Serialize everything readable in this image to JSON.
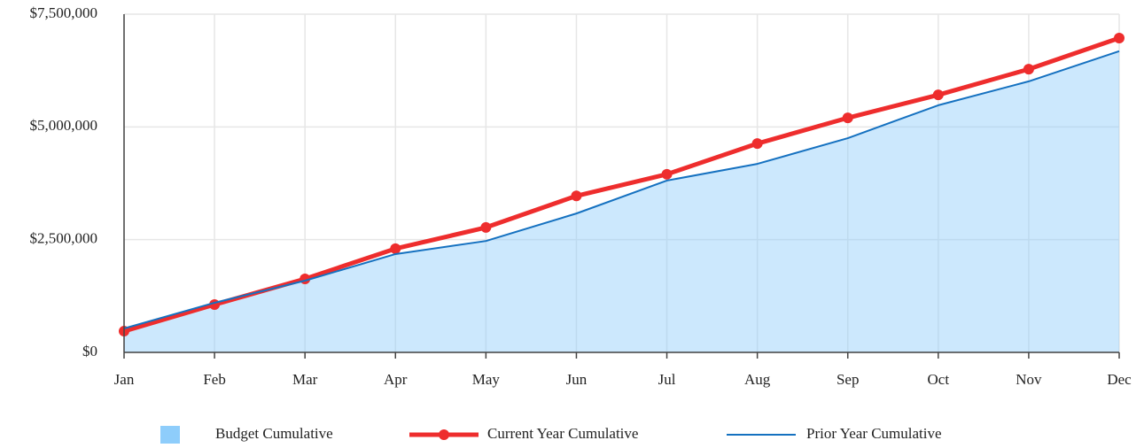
{
  "chart_data": {
    "type": "line",
    "categories": [
      "Jan",
      "Feb",
      "Mar",
      "Apr",
      "May",
      "Jun",
      "Jul",
      "Aug",
      "Sep",
      "Oct",
      "Nov",
      "Dec"
    ],
    "series": [
      {
        "name": "Budget Cumulative",
        "type": "area",
        "color": "#8ecdfb",
        "values": [
          530000,
          1100000,
          1590000,
          2180000,
          2470000,
          3080000,
          3810000,
          4180000,
          4750000,
          5480000,
          6010000,
          6680000
        ]
      },
      {
        "name": "Current Year Cumulative",
        "type": "line",
        "color": "#ee2d2d",
        "values": [
          470000,
          1060000,
          1630000,
          2300000,
          2770000,
          3470000,
          3950000,
          4630000,
          5200000,
          5710000,
          6280000,
          6970000
        ]
      },
      {
        "name": "Prior Year Cumulative",
        "type": "line",
        "color": "#1571c0",
        "values": [
          530000,
          1100000,
          1590000,
          2180000,
          2470000,
          3080000,
          3810000,
          4180000,
          4750000,
          5480000,
          6010000,
          6680000
        ]
      }
    ],
    "ylim": [
      0,
      7500000
    ],
    "yticks": [
      {
        "value": 0,
        "label": "$0"
      },
      {
        "value": 2500000,
        "label": "$2,500,000"
      },
      {
        "value": 5000000,
        "label": "$5,000,000"
      },
      {
        "value": 7500000,
        "label": "$7,500,000"
      }
    ],
    "grid": true,
    "legend": "bottom"
  }
}
